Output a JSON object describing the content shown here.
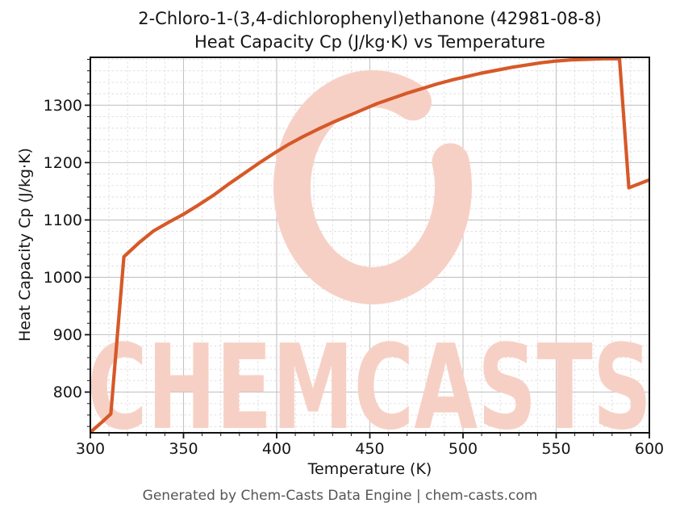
{
  "title_line1": "2-Chloro-1-(3,4-dichlorophenyl)ethanone (42981-08-8)",
  "title_line2": "Heat Capacity Cp (J/kg·K) vs Temperature",
  "footer": "Generated by Chem-Casts Data Engine | chem-casts.com",
  "watermark": {
    "text": "CHEMCASTS",
    "logo": "letter-c-ring",
    "color": "#f7d0c5"
  },
  "colors": {
    "line": "#d65928",
    "grid_major": "#c4c4c4",
    "grid_minor": "#dcdcdc",
    "axis": "#111111",
    "title_text": "#151515",
    "footer_text": "#555555",
    "background": "#ffffff"
  },
  "chart_data": {
    "type": "line",
    "title": "2-Chloro-1-(3,4-dichlorophenyl)ethanone (42981-08-8) Heat Capacity Cp (J/kg·K) vs Temperature",
    "xlabel": "Temperature (K)",
    "ylabel": "Heat Capacity Cp (J/kg·K)",
    "xlim": [
      300,
      600
    ],
    "ylim": [
      729,
      1383.5
    ],
    "x_ticks": [
      300,
      350,
      400,
      450,
      500,
      550,
      600
    ],
    "y_ticks": [
      800,
      900,
      1000,
      1100,
      1200,
      1300
    ],
    "x_minor_step": 10,
    "y_minor_step": 20,
    "grid": true,
    "legend_position": "none",
    "series": [
      {
        "name": "Heat Capacity Cp",
        "color": "#d65928",
        "points": [
          [
            300,
            730
          ],
          [
            306,
            747
          ],
          [
            311,
            762
          ],
          [
            318,
            1036
          ],
          [
            326,
            1060
          ],
          [
            334,
            1081
          ],
          [
            342,
            1096
          ],
          [
            350,
            1110
          ],
          [
            358,
            1126
          ],
          [
            366,
            1143
          ],
          [
            374,
            1162
          ],
          [
            382,
            1180
          ],
          [
            390,
            1198
          ],
          [
            398,
            1215
          ],
          [
            406,
            1231
          ],
          [
            414,
            1245
          ],
          [
            422,
            1258
          ],
          [
            430,
            1270
          ],
          [
            438,
            1281
          ],
          [
            446,
            1292
          ],
          [
            454,
            1303
          ],
          [
            462,
            1312
          ],
          [
            470,
            1321
          ],
          [
            478,
            1329
          ],
          [
            486,
            1337
          ],
          [
            494,
            1344
          ],
          [
            502,
            1350
          ],
          [
            510,
            1356
          ],
          [
            518,
            1361
          ],
          [
            526,
            1366
          ],
          [
            534,
            1370
          ],
          [
            542,
            1374
          ],
          [
            550,
            1377
          ],
          [
            558,
            1379
          ],
          [
            566,
            1380
          ],
          [
            575,
            1381
          ],
          [
            584,
            1381
          ],
          [
            589,
            1156
          ],
          [
            600,
            1170
          ]
        ]
      }
    ]
  }
}
